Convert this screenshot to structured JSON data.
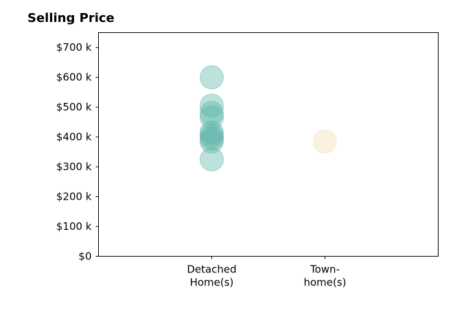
{
  "chart_data": {
    "type": "scatter",
    "title": "Selling Price",
    "xlabel": "",
    "ylabel": "",
    "categories": [
      [
        "Detached",
        "Home(s)"
      ],
      [
        "Town-",
        "home(s)"
      ]
    ],
    "y_ticks": [
      {
        "value": 0,
        "label": "$0"
      },
      {
        "value": 100,
        "label": "$100 k"
      },
      {
        "value": 200,
        "label": "$200 k"
      },
      {
        "value": 300,
        "label": "$300 k"
      },
      {
        "value": 400,
        "label": "$400 k"
      },
      {
        "value": 500,
        "label": "$500 k"
      },
      {
        "value": 600,
        "label": "$600 k"
      },
      {
        "value": 700,
        "label": "$700 k"
      }
    ],
    "ylim": [
      0,
      750
    ],
    "x_range": [
      -1,
      2
    ],
    "grid": false,
    "series": [
      {
        "category_index": 0,
        "color": "#5ab4a8",
        "values": [
          600,
          505,
          480,
          465,
          415,
          405,
          395,
          385,
          325
        ]
      },
      {
        "category_index": 1,
        "color": "#f3deb0",
        "values": [
          385
        ]
      }
    ]
  }
}
